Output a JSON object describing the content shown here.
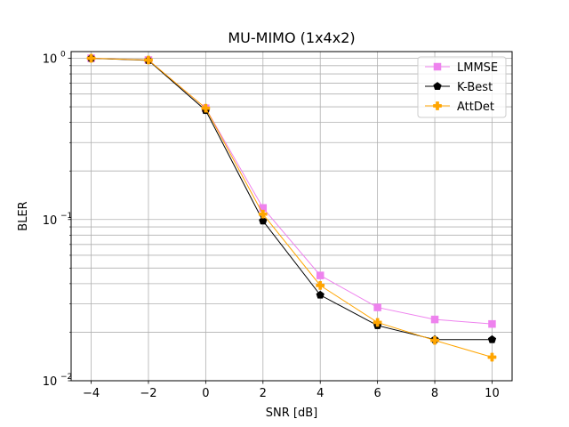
{
  "chart_data": {
    "type": "line",
    "title": "MU-MIMO (1x4x2)",
    "xlabel": "SNR [dB]",
    "ylabel": "BLER",
    "x": [
      -4,
      -2,
      0,
      2,
      4,
      6,
      8,
      10
    ],
    "xlim": [
      -4.7,
      10.7
    ],
    "xticks": [
      -4,
      -2,
      0,
      2,
      4,
      6,
      8,
      10
    ],
    "xtick_labels": [
      "−4",
      "−2",
      "0",
      "2",
      "4",
      "6",
      "8",
      "10"
    ],
    "yscale": "log",
    "ylim": [
      0.01,
      1.1
    ],
    "ytick_labels": [
      {
        "base": "10",
        "exp": "−2"
      },
      {
        "base": "10",
        "exp": "−1"
      },
      {
        "base": "10",
        "exp": "0"
      }
    ],
    "grid": true,
    "legend_position": "top-right",
    "series": [
      {
        "name": "LMMSE",
        "color": "#ee82ee",
        "marker": "square",
        "values": [
          1.0,
          0.975,
          0.49,
          0.118,
          0.045,
          0.0285,
          0.024,
          0.0225
        ]
      },
      {
        "name": "K-Best",
        "color": "#000000",
        "marker": "pentagon",
        "values": [
          1.0,
          0.97,
          0.475,
          0.098,
          0.034,
          0.022,
          0.018,
          0.018
        ]
      },
      {
        "name": "AttDet",
        "color": "#ffa500",
        "marker": "plus",
        "values": [
          1.0,
          0.975,
          0.49,
          0.108,
          0.039,
          0.023,
          0.0178,
          0.014
        ]
      }
    ]
  }
}
